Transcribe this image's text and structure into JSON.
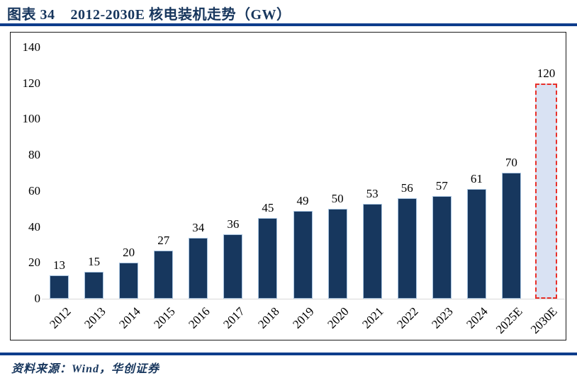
{
  "header": {
    "figure_label": "图表 34",
    "figure_title": "2012-2030E 核电装机走势（GW）"
  },
  "footer": {
    "source_text": "资料来源：Wind，华创证券"
  },
  "colors": {
    "title_navy": "#17365D",
    "rule_blue": "#0E3D8C",
    "bar_fill": "#17375E",
    "bar_edge": "#A8C4E0",
    "highlight_fill": "#D9E2F3",
    "highlight_border": "#E8302A",
    "baseline_gray": "#D9D9D9",
    "label_black": "#000000"
  },
  "chart_data": {
    "type": "bar",
    "title": "2012-2030E 核电装机走势（GW）",
    "unit": "GW",
    "categories": [
      "2012",
      "2013",
      "2014",
      "2015",
      "2016",
      "2017",
      "2018",
      "2019",
      "2020",
      "2021",
      "2022",
      "2023",
      "2024",
      "2025E",
      "2030E"
    ],
    "values": [
      13,
      15,
      20,
      27,
      34,
      36,
      45,
      49,
      50,
      53,
      56,
      57,
      61,
      70,
      120
    ],
    "highlight_index": 14,
    "highlight_style": "red-dashed-outline-light-blue-fill",
    "ylim": [
      0,
      140
    ],
    "yticks": [
      0,
      20,
      40,
      60,
      80,
      100,
      120,
      140
    ],
    "grid": false,
    "legend_position": "none",
    "xlabel": "",
    "ylabel": "",
    "data_labels": "above-bars"
  }
}
